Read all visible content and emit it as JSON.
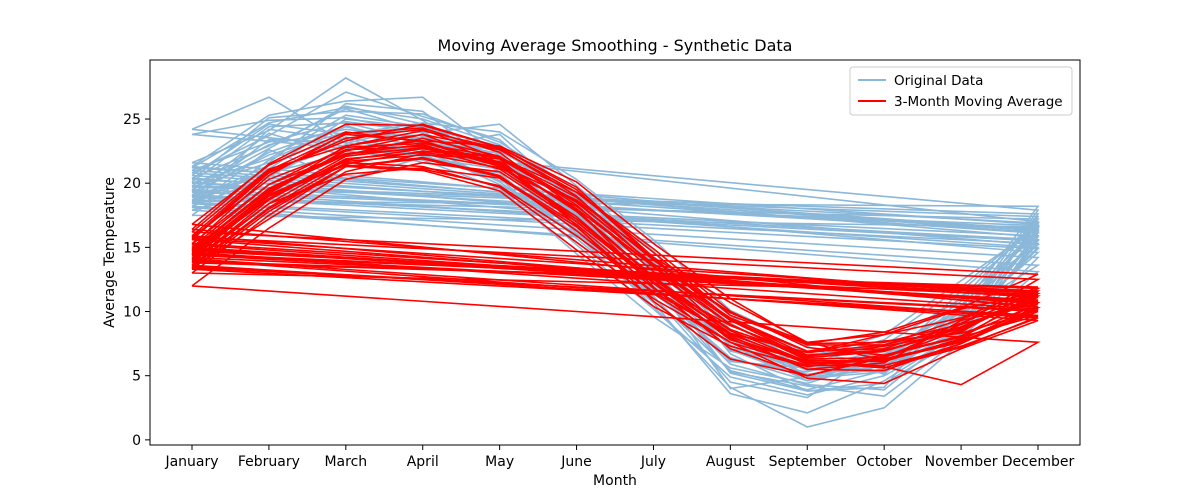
{
  "chart_data": {
    "type": "line",
    "title": "Moving Average Smoothing - Synthetic Data",
    "xlabel": "Month",
    "ylabel": "Average Temperature",
    "categories": [
      "January",
      "February",
      "March",
      "April",
      "May",
      "June",
      "July",
      "August",
      "September",
      "October",
      "November",
      "December"
    ],
    "ylim": [
      -0.4,
      29.6
    ],
    "yticks": [
      0,
      5,
      10,
      15,
      20,
      25
    ],
    "grid": false,
    "legend": {
      "placement": "top-right",
      "entries": [
        {
          "label": "Original Data",
          "color": "#8bb8d9"
        },
        {
          "label": "3-Month Moving Average",
          "color": "#ff0000"
        }
      ]
    },
    "series": [
      {
        "values": [
          24.2,
          26.7,
          23.1,
          24.5,
          22.0,
          17.6,
          13.4,
          9.1,
          5.8,
          5.2,
          8.8,
          17.0
        ],
        "ma": [
          16.8,
          21.4,
          24.0,
          23.2,
          21.4,
          18.7,
          14.2,
          10.7,
          7.6,
          6.2,
          7.6,
          10.3
        ]
      },
      {
        "values": [
          23.8,
          24.9,
          25.1,
          23.9,
          24.6,
          19.8,
          14.7,
          8.0,
          5.0,
          6.1,
          9.7,
          17.9
        ],
        "ma": [
          16.4,
          21.5,
          24.6,
          24.5,
          22.8,
          19.7,
          14.2,
          9.3,
          6.4,
          6.9,
          8.8,
          11.2
        ]
      },
      {
        "values": [
          21.6,
          24.1,
          28.2,
          24.9,
          21.3,
          17.3,
          12.8,
          7.4,
          4.6,
          5.8,
          8.3,
          16.1
        ],
        "ma": [
          15.9,
          21.0,
          23.8,
          23.3,
          21.5,
          17.2,
          12.5,
          8.3,
          5.9,
          6.2,
          7.8,
          10.4
        ]
      },
      {
        "values": [
          21.3,
          25.3,
          26.4,
          26.7,
          22.1,
          16.8,
          11.2,
          4.5,
          3.3,
          7.2,
          9.1,
          15.8
        ],
        "ma": [
          15.6,
          20.8,
          23.5,
          24.2,
          21.9,
          16.7,
          10.8,
          6.3,
          5.0,
          6.5,
          8.1,
          10.6
        ]
      },
      {
        "values": [
          20.8,
          23.7,
          27.1,
          25.2,
          23.4,
          18.3,
          12.4,
          4.0,
          4.9,
          5.5,
          10.4,
          16.3
        ],
        "ma": [
          15.2,
          20.6,
          23.9,
          24.3,
          22.4,
          18.0,
          11.9,
          7.1,
          5.0,
          6.4,
          9.0,
          10.7
        ]
      },
      {
        "values": [
          20.4,
          22.9,
          25.8,
          24.1,
          22.6,
          18.9,
          14.2,
          6.7,
          3.8,
          4.1,
          11.2,
          15.2
        ],
        "ma": [
          15.0,
          19.9,
          22.8,
          23.1,
          22.0,
          18.6,
          13.6,
          8.1,
          5.5,
          6.0,
          9.3,
          10.8
        ]
      },
      {
        "values": [
          20.1,
          24.4,
          24.7,
          23.3,
          21.9,
          17.1,
          13.6,
          7.8,
          5.4,
          6.7,
          9.4,
          14.6
        ],
        "ma": [
          14.8,
          19.6,
          22.3,
          22.7,
          21.6,
          18.0,
          13.5,
          9.0,
          6.3,
          6.4,
          8.6,
          11.3
        ]
      },
      {
        "values": [
          19.7,
          21.6,
          26.2,
          25.6,
          21.2,
          16.4,
          11.9,
          5.3,
          4.2,
          3.4,
          7.9,
          17.4
        ],
        "ma": [
          14.6,
          19.2,
          22.6,
          22.9,
          21.4,
          17.0,
          12.3,
          7.9,
          5.5,
          5.4,
          7.5,
          10.2
        ]
      },
      {
        "values": [
          19.3,
          22.2,
          24.0,
          22.8,
          23.8,
          18.5,
          13.1,
          9.4,
          6.8,
          5.9,
          11.6,
          16.7
        ],
        "ma": [
          14.4,
          19.1,
          21.7,
          22.2,
          21.9,
          18.5,
          13.7,
          9.9,
          7.4,
          7.4,
          9.4,
          11.6
        ]
      },
      {
        "values": [
          18.9,
          23.4,
          23.2,
          21.6,
          20.8,
          15.7,
          10.7,
          3.6,
          2.1,
          4.6,
          8.4,
          15.5
        ],
        "ma": [
          14.1,
          19.0,
          21.4,
          21.1,
          19.8,
          15.9,
          11.5,
          8.2,
          6.1,
          5.6,
          7.2,
          9.6
        ]
      },
      {
        "values": [
          18.6,
          21.1,
          25.0,
          24.3,
          22.9,
          17.9,
          12.2,
          6.1,
          5.6,
          7.0,
          10.2,
          18.2
        ],
        "ma": [
          13.9,
          18.7,
          21.9,
          22.4,
          21.7,
          17.8,
          12.6,
          8.6,
          6.5,
          7.3,
          8.4,
          11.8
        ]
      },
      {
        "values": [
          18.2,
          20.5,
          23.6,
          22.4,
          20.4,
          15.2,
          10.2,
          4.9,
          3.5,
          5.0,
          8.2,
          14.2
        ],
        "ma": [
          13.6,
          18.1,
          21.6,
          21.3,
          19.7,
          15.4,
          11.0,
          7.6,
          5.8,
          5.8,
          7.3,
          9.5
        ]
      },
      {
        "values": [
          17.9,
          19.4,
          22.5,
          21.8,
          19.6,
          14.5,
          9.6,
          5.6,
          4.4,
          6.3,
          9.9,
          13.6
        ],
        "ma": [
          13.3,
          17.8,
          21.3,
          21.0,
          19.4,
          14.8,
          10.4,
          7.3,
          5.7,
          6.6,
          8.0,
          9.7
        ]
      },
      {
        "values": [
          17.5,
          21.8,
          24.4,
          23.1,
          21.6,
          16.1,
          11.4,
          7.1,
          6.2,
          8.2,
          12.4,
          16.6
        ],
        "ma": [
          13.0,
          17.5,
          21.3,
          22.0,
          20.6,
          16.3,
          11.5,
          8.3,
          6.8,
          8.2,
          10.2,
          11.5
        ]
      },
      {
        "values": [
          18.1,
          22.6,
          20.3,
          22.0,
          21.1,
          17.5,
          12.9,
          5.2,
          3.8,
          4.4,
          8.0,
          13.1
        ],
        "ma": [
          12.0,
          16.5,
          20.3,
          21.6,
          20.9,
          17.0,
          12.2,
          7.8,
          6.1,
          5.7,
          4.3,
          7.6
        ]
      },
      {
        "values": [
          19.4,
          23.9,
          22.1,
          23.6,
          22.5,
          19.2,
          14.3,
          8.6,
          5.0,
          5.8,
          9.1,
          15.0
        ],
        "ma": [
          14.2,
          19.0,
          21.5,
          22.5,
          22.0,
          19.3,
          14.9,
          10.0,
          7.2,
          6.6,
          8.1,
          11.2
        ]
      },
      {
        "values": [
          20.6,
          24.6,
          23.8,
          24.7,
          24.0,
          20.3,
          15.6,
          10.1,
          7.3,
          5.1,
          10.5,
          16.1
        ],
        "ma": [
          15.8,
          20.3,
          22.6,
          23.3,
          22.9,
          20.1,
          15.3,
          11.0,
          7.5,
          7.6,
          9.0,
          12.5
        ]
      },
      {
        "values": [
          20.3,
          25.1,
          25.6,
          25.4,
          23.2,
          19.5,
          14.0,
          9.7,
          6.1,
          7.8,
          11.9,
          16.9
        ],
        "ma": [
          16.2,
          21.1,
          22.9,
          23.8,
          22.6,
          19.3,
          14.6,
          9.7,
          7.5,
          8.4,
          10.3,
          12.9
        ]
      },
      {
        "values": [
          19.0,
          20.8,
          22.3,
          22.9,
          20.1,
          16.0,
          10.4,
          4.1,
          1.0,
          2.5,
          7.6,
          15.9
        ],
        "ma": [
          14.0,
          18.4,
          20.7,
          21.2,
          20.4,
          16.6,
          11.4,
          7.6,
          4.8,
          4.4,
          7.1,
          9.3
        ]
      },
      {
        "values": [
          21.0,
          23.2,
          24.8,
          24.0,
          20.9,
          17.0,
          11.6,
          6.4,
          4.6,
          6.5,
          10.8,
          16.4
        ],
        "ma": [
          15.3,
          19.9,
          22.3,
          23.0,
          21.3,
          17.4,
          12.2,
          8.9,
          6.6,
          6.9,
          8.7,
          11.1
        ]
      },
      {
        "values": [
          18.4,
          24.2,
          23.4,
          22.2,
          20.2,
          18.1,
          13.3,
          6.9,
          5.9,
          7.6,
          9.0,
          14.9
        ],
        "ma": [
          13.4,
          17.2,
          20.9,
          22.3,
          21.2,
          18.2,
          13.5,
          9.5,
          6.9,
          7.7,
          8.3,
          10.1
        ]
      },
      {
        "values": [
          20.0,
          21.9,
          25.3,
          24.4,
          21.8,
          17.7,
          12.0,
          5.9,
          4.3,
          3.9,
          8.7,
          16.2
        ],
        "ma": [
          14.9,
          19.4,
          22.5,
          23.8,
          21.6,
          17.9,
          12.7,
          8.5,
          6.1,
          5.6,
          7.5,
          10.7
        ]
      },
      {
        "values": [
          19.1,
          22.4,
          24.5,
          22.6,
          19.9,
          16.6,
          11.7,
          6.2,
          5.3,
          6.9,
          10.1,
          15.6
        ],
        "ma": [
          14.4,
          18.8,
          22.1,
          22.8,
          21.1,
          17.2,
          12.3,
          8.3,
          6.8,
          7.4,
          8.8,
          10.9
        ]
      },
      {
        "values": [
          18.7,
          21.4,
          23.9,
          23.7,
          21.4,
          18.6,
          13.9,
          8.3,
          6.6,
          7.4,
          11.0,
          17.2
        ],
        "ma": [
          13.8,
          18.4,
          21.8,
          22.7,
          22.0,
          18.9,
          14.0,
          9.9,
          7.6,
          8.2,
          9.5,
          11.9
        ]
      },
      {
        "values": [
          21.2,
          24.7,
          25.9,
          25.0,
          23.0,
          19.0,
          13.8,
          7.6,
          5.1,
          6.0,
          9.6,
          16.8
        ],
        "ma": [
          15.7,
          20.9,
          23.3,
          24.6,
          22.8,
          19.5,
          14.1,
          9.4,
          6.6,
          7.0,
          8.5,
          11.4
        ]
      },
      {
        "values": [
          19.8,
          23.0,
          24.2,
          23.5,
          22.3,
          17.4,
          12.5,
          7.0,
          4.8,
          5.3,
          9.3,
          17.6
        ],
        "ma": [
          14.7,
          19.5,
          22.2,
          23.5,
          22.1,
          18.3,
          13.1,
          9.0,
          6.2,
          6.1,
          7.9,
          11.6
        ]
      },
      {
        "values": [
          18.5,
          20.9,
          23.0,
          22.1,
          20.5,
          16.3,
          11.1,
          5.4,
          3.9,
          5.4,
          8.6,
          15.3
        ],
        "ma": [
          13.5,
          18.0,
          21.3,
          21.9,
          20.5,
          16.8,
          11.8,
          8.0,
          6.0,
          6.3,
          7.7,
          10.0
        ]
      },
      {
        "values": [
          19.5,
          22.7,
          26.0,
          24.6,
          22.7,
          18.7,
          13.0,
          7.3,
          5.5,
          6.4,
          10.0,
          16.5
        ],
        "ma": [
          14.5,
          19.3,
          22.9,
          24.1,
          22.7,
          19.0,
          13.5,
          9.3,
          6.9,
          7.1,
          9.1,
          11.5
        ]
      }
    ]
  }
}
